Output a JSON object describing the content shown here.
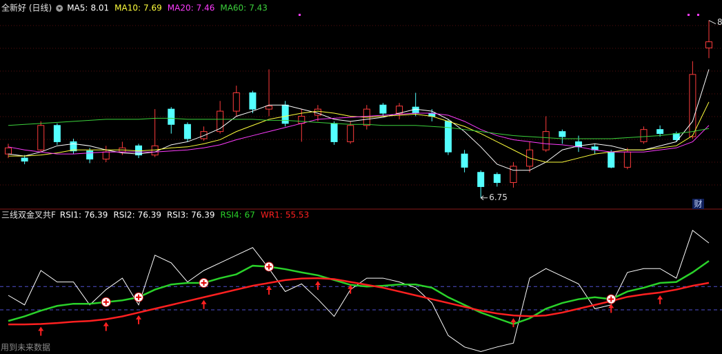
{
  "chart_data": [
    {
      "type": "candlestick",
      "title": "全新好 (日线)",
      "ylim": [
        6.66,
        8.69
      ],
      "open": [
        7.18,
        7.14,
        7.22,
        7.46,
        7.3,
        7.21,
        7.13,
        7.2,
        7.26,
        7.17,
        7.62,
        7.47,
        7.33,
        7.4,
        7.6,
        7.78,
        7.62,
        7.66,
        7.48,
        7.56,
        7.48,
        7.3,
        7.46,
        7.66,
        7.58,
        7.64,
        7.58,
        7.5,
        7.18,
        7.0,
        6.98,
        6.9,
        7.06,
        7.22,
        7.4,
        7.3,
        7.25,
        7.2,
        7.05,
        7.3,
        7.42,
        7.38,
        7.35,
        8.22
      ],
      "high": [
        7.28,
        7.17,
        7.5,
        7.48,
        7.33,
        7.24,
        7.26,
        7.3,
        7.28,
        7.62,
        7.64,
        7.49,
        7.45,
        7.7,
        7.85,
        7.8,
        8.01,
        7.7,
        7.62,
        7.66,
        7.5,
        7.5,
        7.66,
        7.68,
        7.68,
        7.78,
        7.62,
        7.52,
        7.22,
        7.02,
        7.0,
        7.1,
        7.3,
        7.55,
        7.42,
        7.36,
        7.28,
        7.22,
        7.24,
        7.45,
        7.46,
        7.4,
        8.09,
        8.49
      ],
      "low": [
        7.14,
        7.08,
        7.2,
        7.27,
        7.18,
        7.09,
        7.1,
        7.17,
        7.14,
        7.15,
        7.38,
        7.3,
        7.31,
        7.38,
        7.55,
        7.58,
        7.55,
        7.45,
        7.3,
        7.5,
        7.27,
        7.28,
        7.42,
        7.55,
        7.52,
        7.55,
        7.5,
        7.17,
        7.0,
        6.75,
        6.86,
        6.85,
        7.0,
        7.2,
        7.28,
        7.2,
        7.18,
        7.04,
        7.03,
        7.28,
        7.35,
        7.3,
        7.33,
        8.12
      ],
      "close": [
        7.24,
        7.11,
        7.46,
        7.3,
        7.21,
        7.13,
        7.2,
        7.24,
        7.17,
        7.26,
        7.47,
        7.33,
        7.4,
        7.6,
        7.78,
        7.62,
        7.65,
        7.48,
        7.55,
        7.62,
        7.3,
        7.46,
        7.62,
        7.58,
        7.65,
        7.58,
        7.55,
        7.2,
        7.05,
        6.86,
        6.9,
        7.06,
        7.22,
        7.4,
        7.35,
        7.25,
        7.22,
        7.05,
        7.2,
        7.42,
        7.38,
        7.32,
        7.96,
        8.28
      ],
      "up_color": "#ff3c3c",
      "down_color": "#54ffff",
      "series": [
        {
          "name": "MA5:",
          "color": "#ffffff",
          "current": 8.01,
          "values": [
            7.18,
            7.16,
            7.2,
            7.26,
            7.28,
            7.26,
            7.22,
            7.19,
            7.18,
            7.2,
            7.27,
            7.3,
            7.36,
            7.43,
            7.55,
            7.6,
            7.66,
            7.66,
            7.62,
            7.58,
            7.52,
            7.5,
            7.52,
            7.54,
            7.58,
            7.62,
            7.6,
            7.52,
            7.4,
            7.25,
            7.08,
            7.02,
            7.02,
            7.1,
            7.22,
            7.26,
            7.28,
            7.26,
            7.22,
            7.22,
            7.26,
            7.3,
            7.5,
            8.01
          ]
        },
        {
          "name": "MA10:",
          "color": "#ffff3c",
          "current": 7.69,
          "values": [
            7.16,
            7.16,
            7.17,
            7.19,
            7.22,
            7.22,
            7.22,
            7.22,
            7.21,
            7.22,
            7.24,
            7.25,
            7.28,
            7.32,
            7.4,
            7.46,
            7.52,
            7.55,
            7.58,
            7.6,
            7.58,
            7.55,
            7.54,
            7.55,
            7.56,
            7.57,
            7.55,
            7.5,
            7.45,
            7.38,
            7.3,
            7.22,
            7.14,
            7.1,
            7.1,
            7.14,
            7.18,
            7.2,
            7.22,
            7.22,
            7.24,
            7.26,
            7.36,
            7.69
          ]
        },
        {
          "name": "MA20:",
          "color": "#ff3cff",
          "current": 7.46,
          "values": [
            7.25,
            7.22,
            7.2,
            7.18,
            7.18,
            7.19,
            7.2,
            7.2,
            7.2,
            7.2,
            7.21,
            7.22,
            7.24,
            7.27,
            7.32,
            7.36,
            7.4,
            7.44,
            7.48,
            7.52,
            7.53,
            7.54,
            7.55,
            7.56,
            7.57,
            7.58,
            7.58,
            7.56,
            7.5,
            7.42,
            7.36,
            7.32,
            7.3,
            7.28,
            7.27,
            7.25,
            7.22,
            7.2,
            7.2,
            7.2,
            7.22,
            7.24,
            7.3,
            7.46
          ]
        },
        {
          "name": "MA60:",
          "color": "#3cd23c",
          "current": 7.43,
          "values": [
            7.46,
            7.47,
            7.48,
            7.49,
            7.5,
            7.51,
            7.52,
            7.52,
            7.52,
            7.53,
            7.53,
            7.52,
            7.52,
            7.52,
            7.52,
            7.52,
            7.51,
            7.51,
            7.5,
            7.49,
            7.48,
            7.47,
            7.47,
            7.46,
            7.46,
            7.46,
            7.45,
            7.44,
            7.42,
            7.4,
            7.38,
            7.36,
            7.35,
            7.34,
            7.33,
            7.33,
            7.33,
            7.33,
            7.34,
            7.35,
            7.36,
            7.38,
            7.4,
            7.43
          ]
        }
      ]
    },
    {
      "type": "line",
      "title": "三线双金叉共F",
      "ylim": [
        19.4,
        91.6
      ],
      "ref_lines": [
        53.6,
        41.4
      ],
      "series": [
        {
          "name": "RSI1:",
          "color": "#ffffff",
          "current": 76.39,
          "values": [
            49,
            44,
            62,
            56,
            56,
            44,
            52,
            58,
            44,
            70,
            66,
            56,
            62,
            66,
            70,
            74,
            63,
            51,
            55,
            47,
            38,
            52,
            58,
            58,
            56,
            53,
            45,
            28,
            22,
            19.6,
            22,
            24,
            58,
            63,
            59,
            55,
            42,
            44,
            61,
            63,
            63,
            58,
            83,
            76.39
          ]
        },
        {
          "name": "RSI2:",
          "color": "#ffffff",
          "current": 76.39
        },
        {
          "name": "RSI3:",
          "color": "#ffffff",
          "current": 76.39
        },
        {
          "name": "RSI4:",
          "color": "#2ad22a",
          "current": 67.0,
          "values": [
            35.6,
            38,
            41,
            43.5,
            44.6,
            44.6,
            45.5,
            46.4,
            48,
            52,
            54.7,
            55.5,
            55.5,
            58,
            60,
            64.5,
            64,
            62.7,
            61,
            59.5,
            57,
            54.5,
            53.6,
            54,
            54.7,
            54.7,
            53,
            48,
            44,
            40,
            37,
            34,
            37,
            42,
            45,
            47,
            48,
            47,
            51,
            53,
            55.5,
            56,
            61,
            67
          ]
        },
        {
          "name": "WR1:",
          "color": "#ff2020",
          "current": 55.53,
          "values": [
            33.8,
            33.8,
            34,
            34.5,
            35.2,
            35.6,
            36.5,
            38,
            40,
            42,
            44,
            46,
            48,
            50,
            52,
            54,
            55.5,
            57,
            57.8,
            58,
            57.5,
            56,
            54.5,
            53,
            51,
            49,
            47,
            45,
            43,
            41,
            39.5,
            38.5,
            38.1,
            38.5,
            40,
            42,
            44,
            46,
            48.2,
            49.5,
            50.5,
            52,
            54,
            55.53
          ]
        }
      ],
      "cross_index": [
        6,
        8,
        12,
        16,
        37
      ],
      "arrow_index": [
        2,
        6,
        8,
        12,
        16,
        19,
        21,
        31,
        37,
        40
      ]
    }
  ],
  "footer_note": "用到未来数据",
  "badge": "财"
}
